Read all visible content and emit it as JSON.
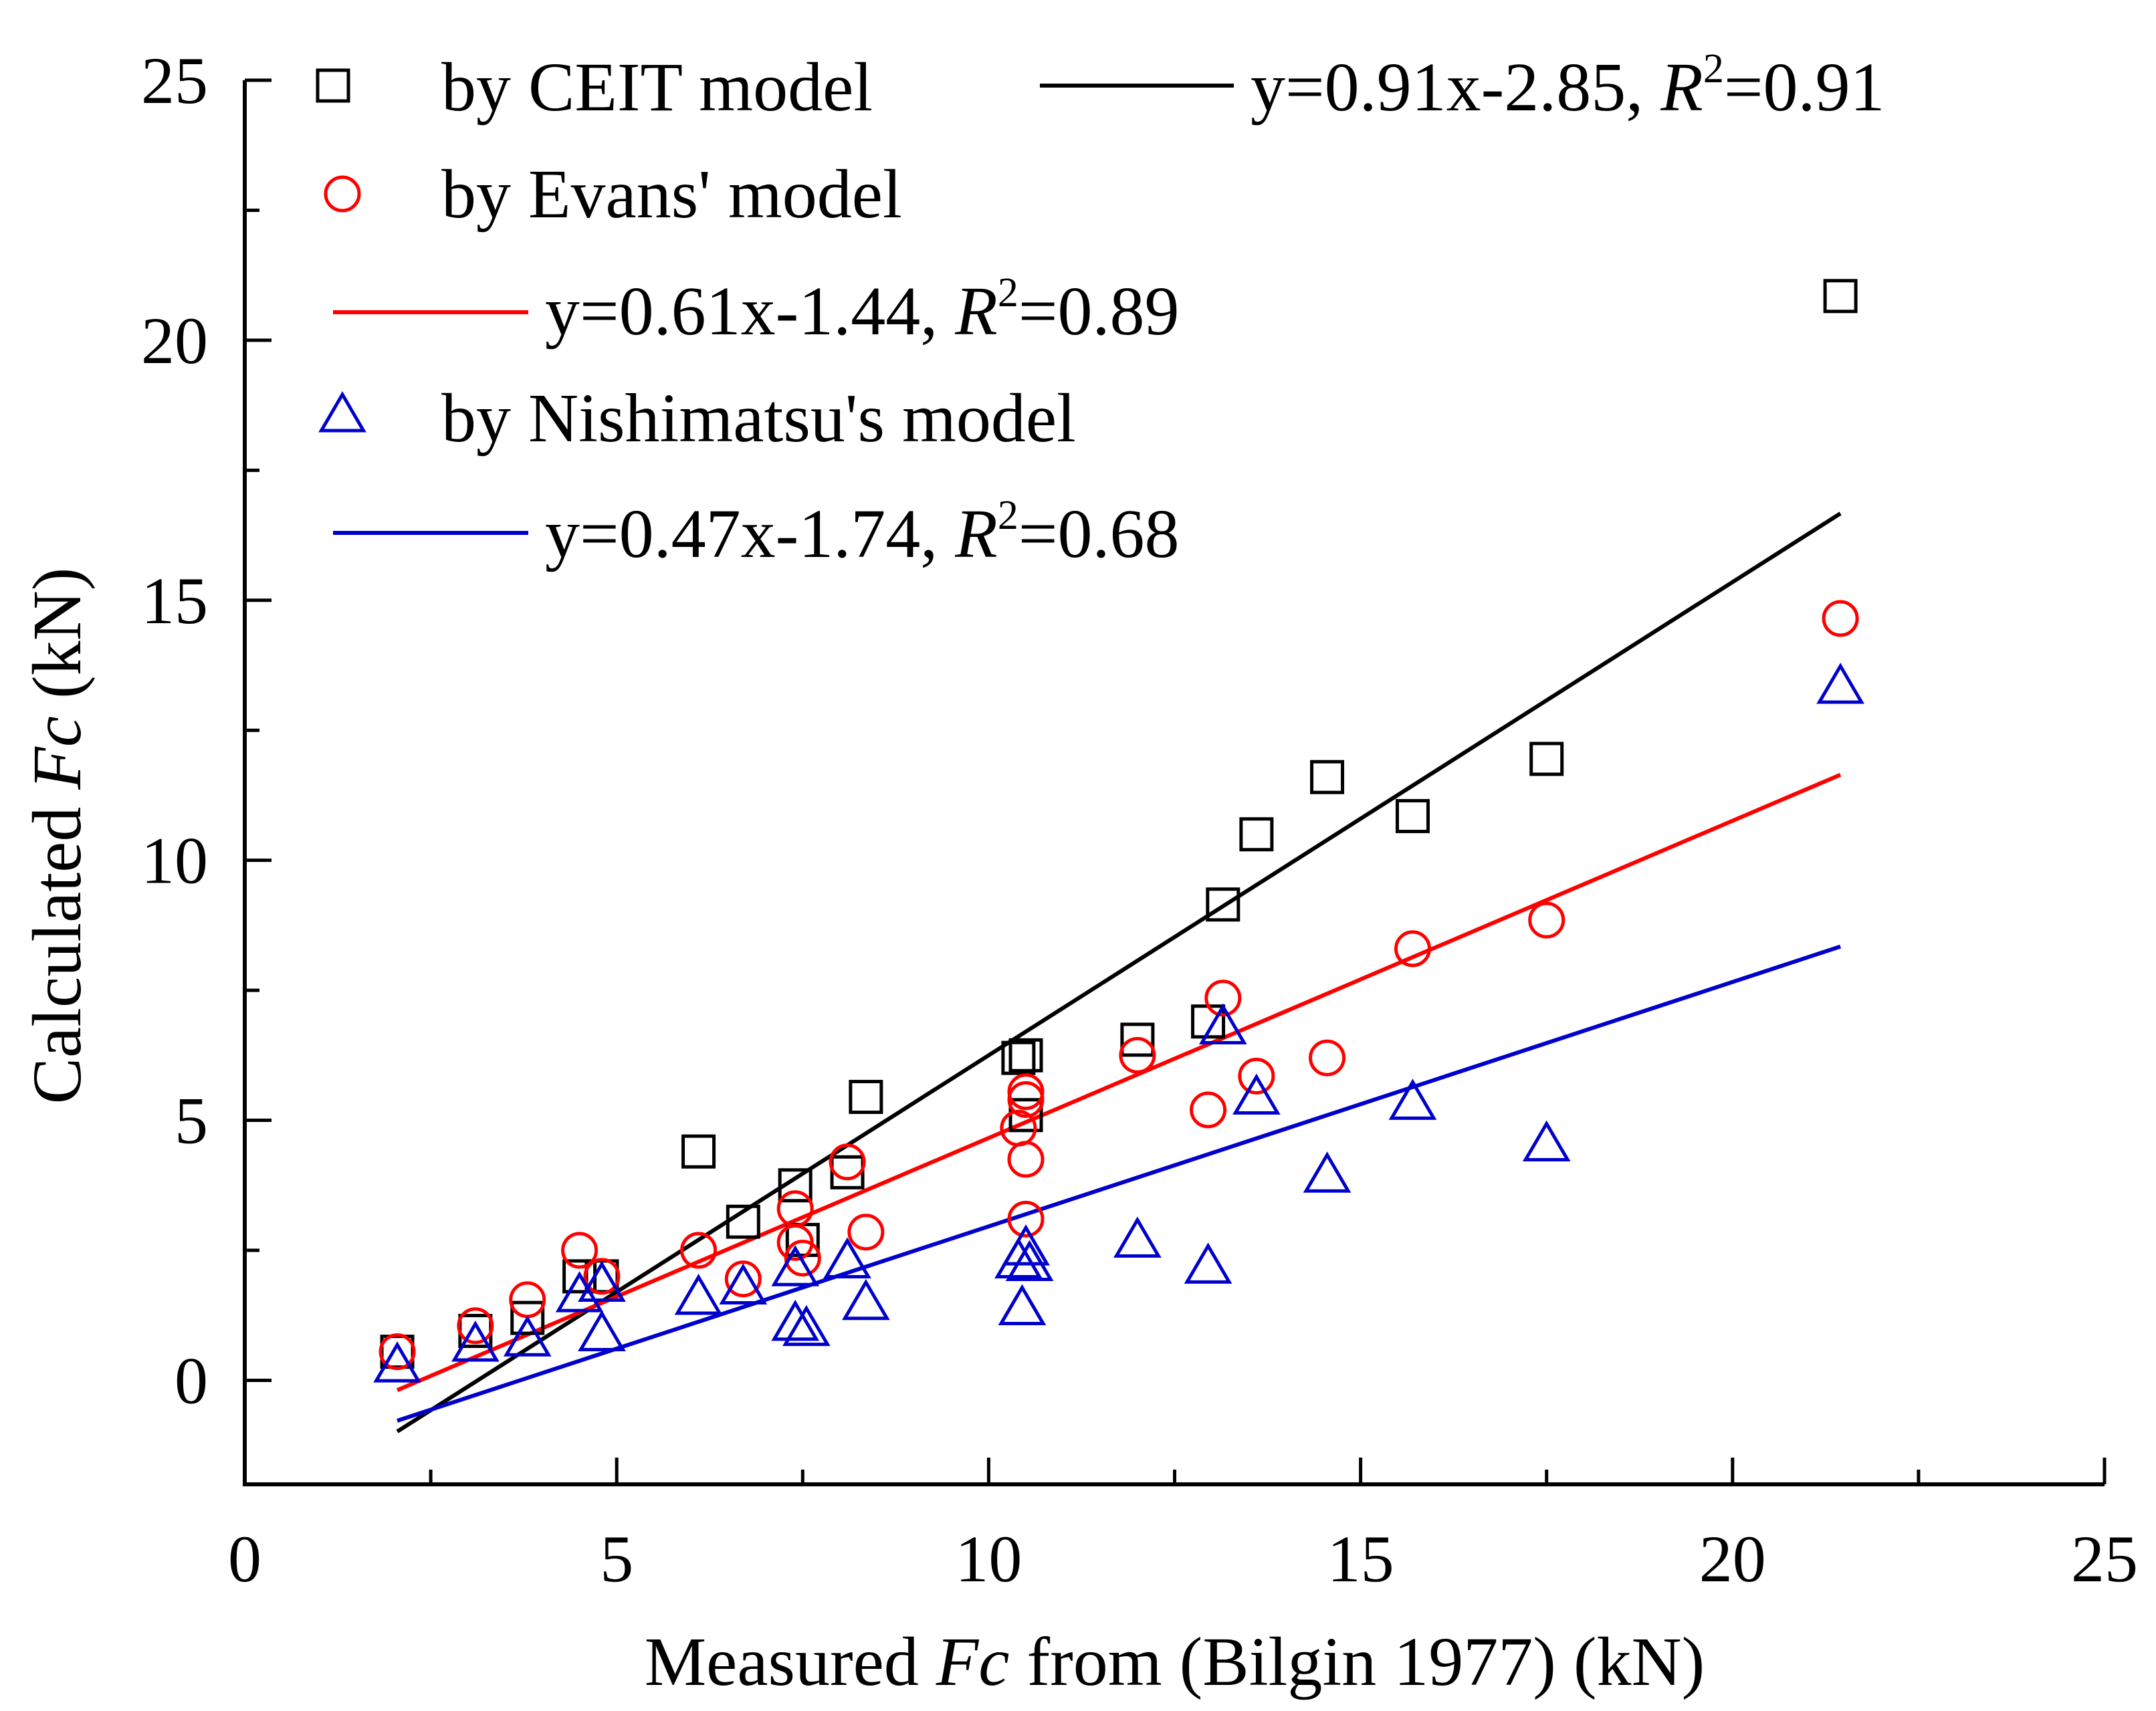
{
  "chart_data": {
    "type": "scatter",
    "title": "",
    "xlabel": {
      "prefix": "Measured ",
      "italic": "Fc",
      "suffix": " from (Bilgin 1977) (kN)"
    },
    "ylabel": {
      "prefix": "Calculated ",
      "italic": "Fc",
      "suffix": " (kN)"
    },
    "xlim": [
      0,
      25
    ],
    "ylim": [
      -2,
      25
    ],
    "xticks": [
      0,
      5,
      10,
      15,
      20,
      25
    ],
    "yticks": [
      0,
      5,
      10,
      15,
      20,
      25
    ],
    "grid": false,
    "legend_position": "top-left",
    "series": [
      {
        "name": "by CEIT model",
        "marker": "square",
        "color": "#000000",
        "points": [
          [
            2.05,
            0.55
          ],
          [
            3.1,
            0.95
          ],
          [
            3.8,
            1.2
          ],
          [
            4.5,
            2.0
          ],
          [
            4.8,
            2.0
          ],
          [
            6.1,
            4.4
          ],
          [
            6.7,
            3.05
          ],
          [
            7.4,
            3.75
          ],
          [
            7.5,
            2.7
          ],
          [
            8.1,
            4.0
          ],
          [
            8.35,
            5.45
          ],
          [
            10.4,
            6.2
          ],
          [
            10.5,
            5.1
          ],
          [
            10.5,
            6.25
          ],
          [
            12.0,
            6.55
          ],
          [
            12.95,
            6.9
          ],
          [
            13.15,
            9.15
          ],
          [
            13.6,
            10.5
          ],
          [
            14.55,
            11.6
          ],
          [
            15.7,
            10.85
          ],
          [
            17.5,
            11.95
          ],
          [
            21.45,
            20.85
          ]
        ],
        "fit": {
          "label": "y=0.91x-2.85, ",
          "r2_label": "=0.91",
          "slope": 0.91,
          "intercept": -2.85,
          "x_range": [
            2.05,
            21.45
          ]
        }
      },
      {
        "name": "by Evans' model",
        "marker": "circle",
        "color": "#ff0000",
        "points": [
          [
            2.05,
            0.55
          ],
          [
            3.1,
            1.05
          ],
          [
            3.8,
            1.55
          ],
          [
            4.5,
            2.5
          ],
          [
            4.8,
            2.0
          ],
          [
            6.1,
            2.5
          ],
          [
            6.7,
            1.95
          ],
          [
            7.4,
            2.65
          ],
          [
            7.4,
            3.3
          ],
          [
            7.5,
            2.35
          ],
          [
            8.1,
            4.2
          ],
          [
            8.35,
            2.85
          ],
          [
            10.4,
            4.85
          ],
          [
            10.5,
            5.4
          ],
          [
            10.5,
            5.55
          ],
          [
            10.5,
            4.25
          ],
          [
            10.5,
            3.1
          ],
          [
            12.0,
            6.25
          ],
          [
            12.95,
            5.2
          ],
          [
            13.15,
            7.35
          ],
          [
            13.6,
            5.85
          ],
          [
            14.55,
            6.2
          ],
          [
            15.7,
            8.3
          ],
          [
            17.5,
            8.85
          ],
          [
            21.45,
            14.65
          ]
        ],
        "fit": {
          "label": "y=0.61x-1.44, ",
          "r2_label": "=0.89",
          "slope": 0.61,
          "intercept": -1.44,
          "x_range": [
            2.05,
            21.45
          ]
        }
      },
      {
        "name": "by Nishimatsu's model",
        "marker": "triangle",
        "color": "#0000cc",
        "points": [
          [
            2.05,
            0.3
          ],
          [
            3.1,
            0.7
          ],
          [
            3.8,
            0.8
          ],
          [
            4.5,
            1.65
          ],
          [
            4.8,
            1.85
          ],
          [
            4.8,
            0.9
          ],
          [
            6.1,
            1.6
          ],
          [
            6.7,
            1.8
          ],
          [
            7.4,
            2.15
          ],
          [
            7.4,
            1.1
          ],
          [
            7.55,
            1.0
          ],
          [
            8.1,
            2.3
          ],
          [
            8.35,
            1.5
          ],
          [
            10.4,
            2.3
          ],
          [
            10.5,
            2.55
          ],
          [
            10.55,
            2.25
          ],
          [
            10.45,
            1.4
          ],
          [
            12.0,
            2.7
          ],
          [
            12.95,
            2.2
          ],
          [
            13.15,
            6.8
          ],
          [
            13.6,
            5.45
          ],
          [
            14.55,
            3.95
          ],
          [
            15.7,
            5.35
          ],
          [
            17.5,
            4.55
          ],
          [
            21.45,
            13.35
          ]
        ],
        "fit": {
          "label": "y=0.47x-1.74, ",
          "r2_label": "=0.68",
          "slope": 0.47,
          "intercept": -1.74,
          "x_range": [
            2.05,
            21.45
          ]
        }
      }
    ],
    "legend": {
      "r_symbol": "R",
      "r_superscript": "2"
    }
  }
}
